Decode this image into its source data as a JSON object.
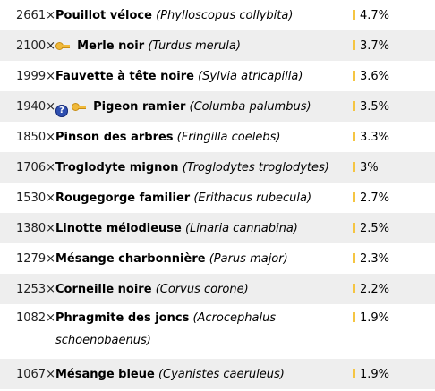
{
  "rows": [
    {
      "count": "2661×",
      "name": "Pouillot véloce",
      "sci": "(Phylloscopus collybita)",
      "pct": "4.7%"
    },
    {
      "count": "2100×",
      "name": "Merle noir",
      "sci": "(Turdus merula)",
      "pct": "3.7%",
      "icons": [
        "key-icon"
      ]
    },
    {
      "count": "1999×",
      "name": "Fauvette à tête noire",
      "sci": "(Sylvia atricapilla)",
      "pct": "3.6%"
    },
    {
      "count": "1940×",
      "name": "Pigeon ramier",
      "sci": "(Columba palumbus)",
      "pct": "3.5%",
      "icons": [
        "question-icon",
        "key-icon"
      ],
      "question_label": "?"
    },
    {
      "count": "1850×",
      "name": "Pinson des arbres",
      "sci": "(Fringilla coelebs)",
      "pct": "3.3%"
    },
    {
      "count": "1706×",
      "name": "Troglodyte mignon",
      "sci": "(Troglodytes troglodytes)",
      "pct": "3%"
    },
    {
      "count": "1530×",
      "name": "Rougegorge familier",
      "sci": "(Erithacus rubecula)",
      "pct": "2.7%"
    },
    {
      "count": "1380×",
      "name": "Linotte mélodieuse",
      "sci": "(Linaria cannabina)",
      "pct": "2.5%"
    },
    {
      "count": "1279×",
      "name": "Mésange charbonnière",
      "sci": "(Parus major)",
      "pct": "2.3%"
    },
    {
      "count": "1253×",
      "name": "Corneille noire",
      "sci": "(Corvus corone)",
      "pct": "2.2%"
    },
    {
      "count": "1082×",
      "name": "Phragmite des joncs",
      "sci": "(Acrocephalus schoenobaenus)",
      "pct": "1.9%"
    },
    {
      "count": "1067×",
      "name": "Mésange bleue",
      "sci": "(Cyanistes caeruleus)",
      "pct": "1.9%"
    }
  ],
  "colors": {
    "bar": "#f5c542",
    "row_alt": "#eeeeee",
    "question_badge": "#2f4fb0"
  }
}
